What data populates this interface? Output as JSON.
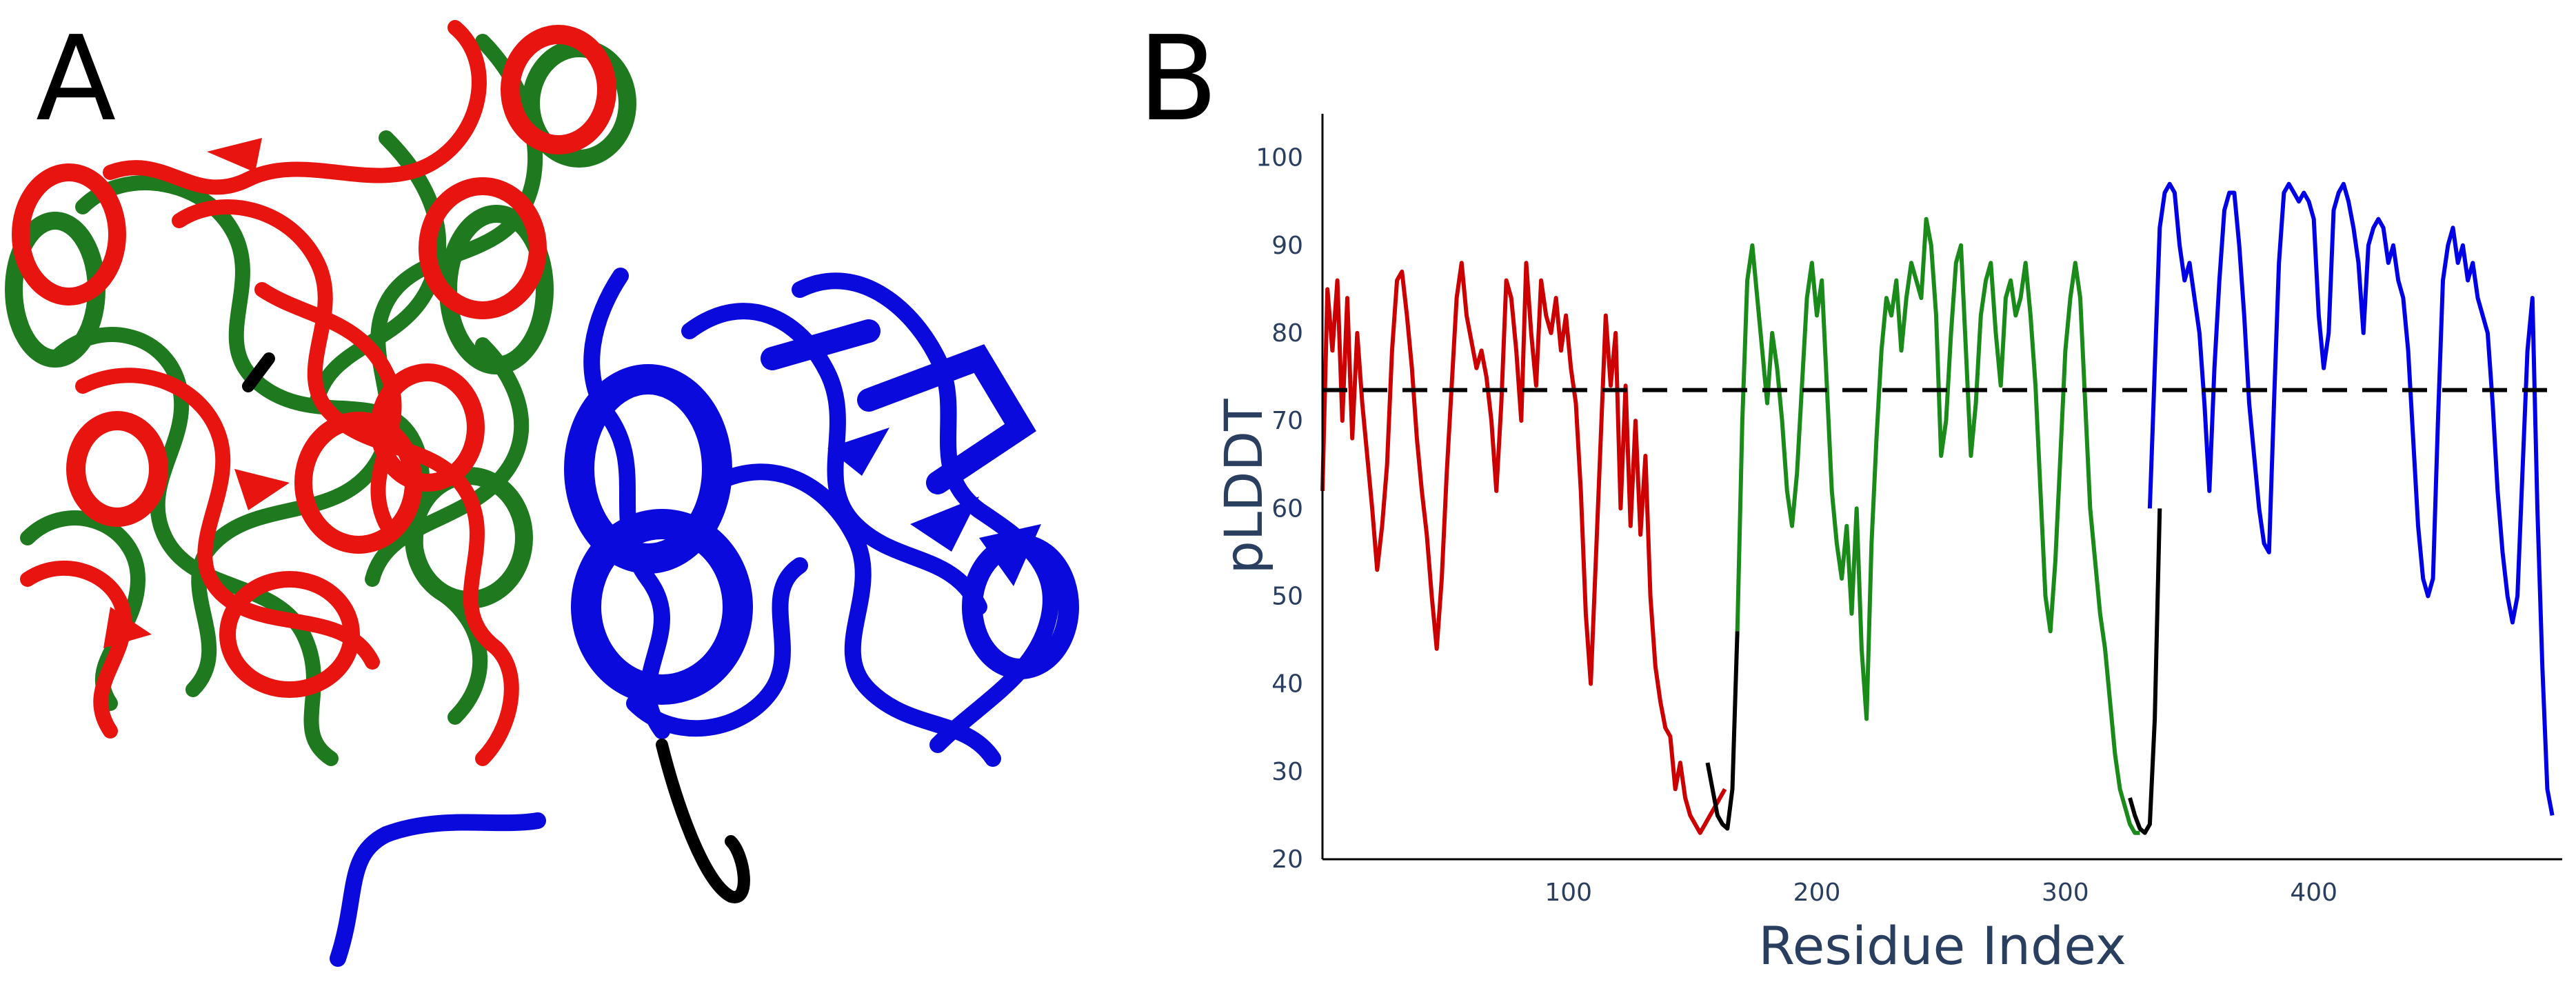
{
  "panels": {
    "a_label": "A",
    "b_label": "B"
  },
  "structure": {
    "domain_colors": [
      "#e8140f",
      "#1f7a1f",
      "#0a0adc",
      "#000000"
    ],
    "shapes": [
      "helix",
      "sheet",
      "coil"
    ]
  },
  "chart_data": {
    "type": "line",
    "xlabel": "Residue Index",
    "ylabel": "pLDDT",
    "xlim": [
      1,
      500
    ],
    "ylim": [
      20,
      105
    ],
    "x_ticks": [
      100,
      200,
      300,
      400
    ],
    "y_ticks": [
      20,
      30,
      40,
      50,
      60,
      70,
      80,
      90,
      100
    ],
    "threshold": {
      "value": 73.5,
      "style": "dashed",
      "color": "#000000"
    },
    "grid": false,
    "series": [
      {
        "color": "#cc0000",
        "x": [
          1,
          3,
          5,
          7,
          9,
          11,
          13,
          15,
          17,
          19,
          21,
          23,
          25,
          27,
          29,
          31,
          33,
          35,
          37,
          39,
          41,
          43,
          45,
          47,
          49,
          51,
          53,
          55,
          57,
          59,
          61,
          63,
          65,
          67,
          69,
          71,
          73,
          75,
          77,
          79,
          81,
          83,
          85,
          87,
          89,
          91,
          93,
          95,
          97,
          99,
          101,
          103,
          105,
          107,
          109,
          111,
          113,
          115,
          117,
          119,
          121,
          123,
          125,
          127,
          129,
          131,
          133,
          135,
          137,
          139,
          141,
          143,
          145,
          147,
          149,
          151,
          153,
          155,
          157,
          159,
          161,
          163
        ],
        "y": [
          62,
          85,
          78,
          86,
          70,
          84,
          68,
          80,
          72,
          66,
          60,
          53,
          58,
          65,
          78,
          86,
          87,
          82,
          76,
          68,
          62,
          57,
          50,
          44,
          52,
          64,
          74,
          84,
          88,
          82,
          79,
          76,
          78,
          75,
          70,
          62,
          72,
          86,
          84,
          78,
          70,
          88,
          80,
          74,
          86,
          82,
          80,
          84,
          78,
          82,
          76,
          72,
          62,
          48,
          40,
          54,
          68,
          82,
          74,
          80,
          60,
          74,
          58,
          70,
          57,
          66,
          50,
          42,
          38,
          35,
          34,
          28,
          31,
          27,
          25,
          24,
          23,
          24,
          25,
          26,
          27,
          28
        ]
      },
      {
        "color": "#1a8a1a",
        "x": [
          168,
          170,
          172,
          174,
          176,
          178,
          180,
          182,
          184,
          186,
          188,
          190,
          192,
          194,
          196,
          198,
          200,
          202,
          204,
          206,
          208,
          210,
          212,
          214,
          216,
          218,
          220,
          222,
          224,
          226,
          228,
          230,
          232,
          234,
          236,
          238,
          240,
          242,
          244,
          246,
          248,
          250,
          252,
          254,
          256,
          258,
          260,
          262,
          264,
          266,
          268,
          270,
          272,
          274,
          276,
          278,
          280,
          282,
          284,
          286,
          288,
          290,
          292,
          294,
          296,
          298,
          300,
          302,
          304,
          306,
          308,
          310,
          312,
          314,
          316,
          318,
          320,
          322,
          324,
          326,
          328,
          330
        ],
        "y": [
          46,
          70,
          86,
          90,
          84,
          78,
          72,
          80,
          76,
          70,
          62,
          58,
          64,
          74,
          84,
          88,
          82,
          86,
          74,
          62,
          56,
          52,
          58,
          48,
          60,
          44,
          36,
          56,
          68,
          78,
          84,
          82,
          86,
          78,
          84,
          88,
          86,
          84,
          93,
          90,
          82,
          66,
          70,
          80,
          88,
          90,
          78,
          66,
          72,
          82,
          86,
          88,
          80,
          74,
          84,
          86,
          82,
          84,
          88,
          82,
          74,
          62,
          50,
          46,
          54,
          66,
          78,
          84,
          88,
          84,
          72,
          60,
          54,
          48,
          44,
          38,
          32,
          28,
          26,
          24,
          23,
          23
        ]
      },
      {
        "color": "#0000e6",
        "x": [
          334,
          336,
          338,
          340,
          342,
          344,
          346,
          348,
          350,
          352,
          354,
          356,
          358,
          360,
          362,
          364,
          366,
          368,
          370,
          372,
          374,
          376,
          378,
          380,
          382,
          384,
          386,
          388,
          390,
          392,
          394,
          396,
          398,
          400,
          402,
          404,
          406,
          408,
          410,
          412,
          414,
          416,
          418,
          420,
          422,
          424,
          426,
          428,
          430,
          432,
          434,
          436,
          438,
          440,
          442,
          444,
          446,
          448,
          450,
          452,
          454,
          456,
          458,
          460,
          462,
          464,
          466,
          468,
          470,
          472,
          474,
          476,
          478,
          480,
          482,
          484,
          486,
          488,
          490,
          492,
          494,
          496
        ],
        "y": [
          60,
          76,
          92,
          96,
          97,
          96,
          90,
          86,
          88,
          84,
          80,
          72,
          62,
          76,
          86,
          94,
          96,
          96,
          90,
          82,
          72,
          66,
          60,
          56,
          55,
          72,
          88,
          96,
          97,
          96,
          95,
          96,
          95,
          93,
          82,
          76,
          80,
          94,
          96,
          97,
          95,
          92,
          88,
          80,
          90,
          92,
          93,
          92,
          88,
          90,
          86,
          84,
          78,
          68,
          58,
          52,
          50,
          52,
          70,
          86,
          90,
          92,
          88,
          90,
          86,
          88,
          84,
          82,
          80,
          72,
          62,
          55,
          50,
          47,
          50,
          64,
          78,
          84,
          60,
          42,
          28,
          25
        ]
      },
      {
        "color": "#000000",
        "x": [
          156,
          158,
          160,
          162,
          164,
          166,
          168
        ],
        "y": [
          31,
          28,
          25,
          24,
          23.5,
          28,
          46
        ]
      },
      {
        "color": "#000000",
        "x": [
          326,
          328,
          330,
          332,
          334,
          336,
          338
        ],
        "y": [
          27,
          25,
          23.5,
          23,
          24,
          36,
          60
        ]
      }
    ]
  }
}
